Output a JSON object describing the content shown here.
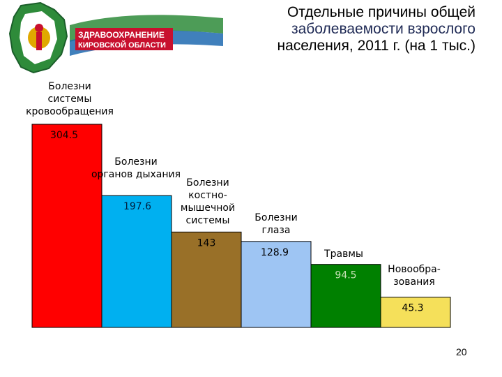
{
  "header": {
    "logo_line1": "ЗДРАВООХРАНЕНИЕ",
    "logo_line2": "КИРОВСКОЙ ОБЛАСТИ",
    "title_line1": "Отдельные причины общей",
    "title_line2": "заболеваемости взрослого",
    "title_line3": "населения, 2011 г. (на 1 тыс.)"
  },
  "page_number": "20",
  "colors": {
    "bar1": "#ff0000",
    "bar2": "#00b0f0",
    "bar3": "#997028",
    "bar4": "#9ec5f3",
    "bar5": "#008000",
    "bar6": "#f5e05a",
    "logo_band": "#c8102e",
    "logo_leaf": "#2e8b3a"
  },
  "chart_data": {
    "type": "bar",
    "categories": [
      [
        "Болезни",
        "системы",
        "кровообращения"
      ],
      [
        "Болезни",
        "органов дыхания"
      ],
      [
        "Болезни",
        "костно-",
        "мышечной",
        "системы"
      ],
      [
        "Болезни",
        "глаза"
      ],
      [
        "Травмы"
      ],
      [
        "Новообра-",
        "зования"
      ]
    ],
    "values": [
      304.5,
      197.6,
      143,
      128.9,
      94.5,
      45.3
    ],
    "value_labels": [
      "304.5",
      "197.6",
      "143",
      "128.9",
      "94.5",
      "45.3"
    ],
    "title": "Отдельные причины общей заболеваемости взрослого населения, 2011 г. (на 1 тыс.)",
    "ylim": [
      0,
      304.5
    ],
    "grid": false,
    "legend": "none"
  }
}
